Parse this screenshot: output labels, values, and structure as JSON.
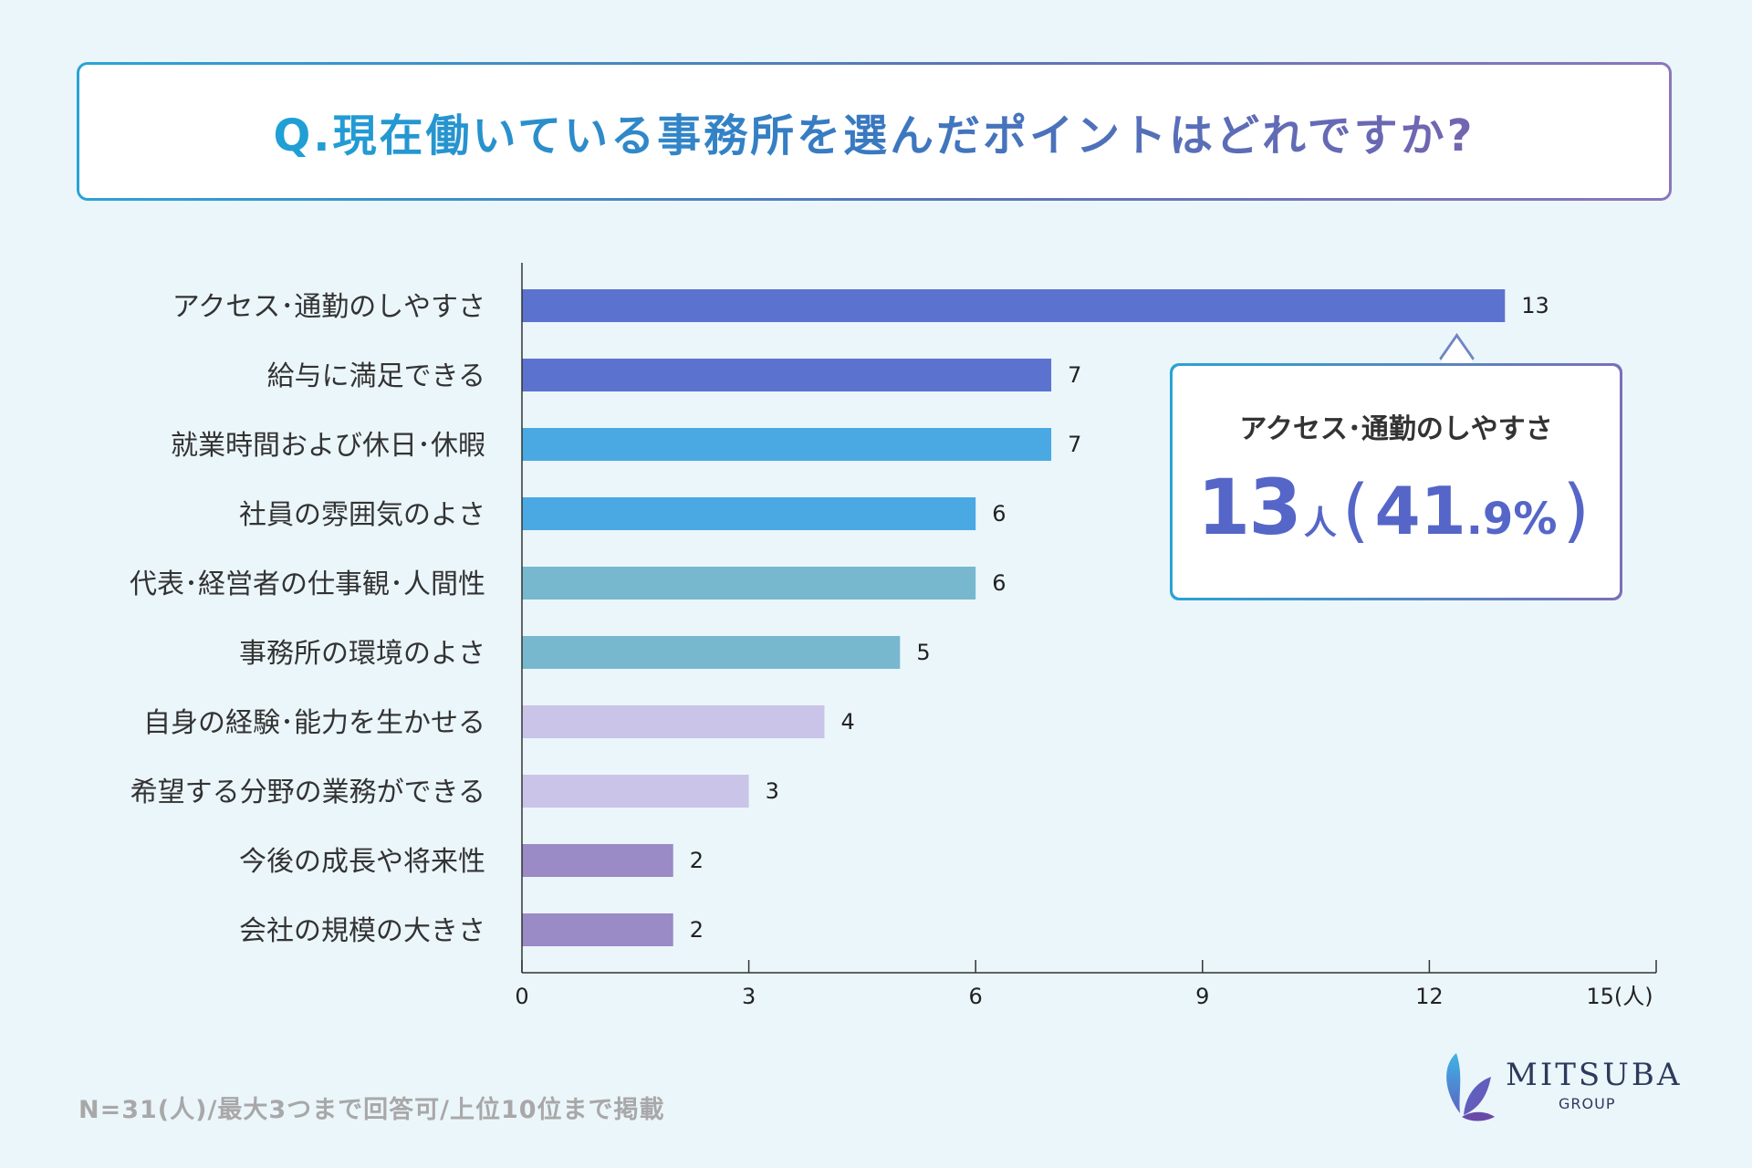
{
  "header": {
    "title": "Q.現在働いている事務所を選んだポイントはどれですか?"
  },
  "colors": {
    "dark_blue": "#5b73cf",
    "light_blue": "#4aa9e2",
    "teal": "#77b8cf",
    "lavender": "#cac4e8",
    "purple": "#9a8ac6"
  },
  "chart_data": {
    "type": "bar",
    "orientation": "horizontal",
    "categories": [
      "アクセス･通勤のしやすさ",
      "給与に満足できる",
      "就業時間および休日･休暇",
      "社員の雰囲気のよさ",
      "代表･経営者の仕事観･人間性",
      "事務所の環境のよさ",
      "自身の経験･能力を生かせる",
      "希望する分野の業務ができる",
      "今後の成長や将来性",
      "会社の規模の大きさ"
    ],
    "values": [
      13,
      7,
      7,
      6,
      6,
      5,
      4,
      3,
      2,
      2
    ],
    "bar_colors": [
      "#5b73cf",
      "#5b73cf",
      "#4aa9e2",
      "#4aa9e2",
      "#77b8cf",
      "#77b8cf",
      "#cac4e8",
      "#cac4e8",
      "#9a8ac6",
      "#9a8ac6"
    ],
    "value_labels": [
      "13",
      "7",
      "7",
      "6",
      "6",
      "5",
      "4",
      "3",
      "2",
      "2"
    ],
    "xlim": [
      0,
      15
    ],
    "xticks": [
      0,
      3,
      6,
      9,
      12,
      15
    ],
    "xtick_labels": [
      "0",
      "3",
      "6",
      "9",
      "12",
      "15(人)"
    ],
    "xlabel": "",
    "ylabel": "",
    "grid": false
  },
  "callout": {
    "label": "アクセス･通勤のしやすさ",
    "count": "13",
    "unit": "人",
    "open_paren": "(",
    "percent_int": "41",
    "percent_dec": ".9",
    "percent_sign": "%",
    "close_paren": ")"
  },
  "footer": {
    "note": "N=31(人)/最大3つまで回答可/上位10位まで掲載",
    "logo_name": "MITSUBA",
    "logo_sub": "GROUP"
  }
}
